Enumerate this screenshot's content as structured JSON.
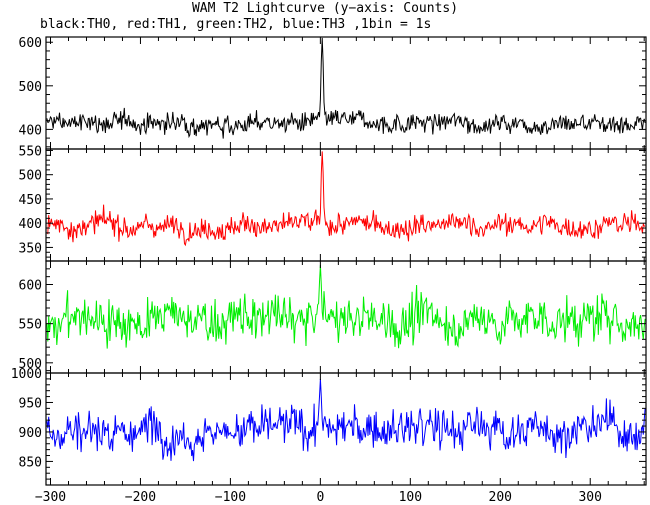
{
  "title": "WAM T2 Lightcurve (y−axis: Counts)",
  "subtitle": "black:TH0, red:TH1, green:TH2, blue:TH3 ,1bin = 1s",
  "chart_data": {
    "type": "line",
    "title": "WAM T2 Lightcurve (y−axis: Counts)",
    "subtitle": "black:TH0, red:TH1, green:TH2, blue:TH3 ,1bin = 1s",
    "xlabel": "",
    "xlim": [
      -305,
      362
    ],
    "x_ticks": [
      -300,
      -200,
      -100,
      0,
      100,
      200,
      300
    ],
    "x_tick_labels": [
      "−300",
      "−200",
      "−100",
      "0",
      "100",
      "200",
      "300"
    ],
    "bin_seconds": 1,
    "grid": false,
    "panels": [
      {
        "series": "TH0",
        "color": "#000000",
        "ylim": [
          355,
          612
        ],
        "y_ticks": [
          400,
          500,
          600
        ],
        "y_tick_labels": [
          "400",
          "500",
          "600"
        ],
        "baseline": 415,
        "noise": 20,
        "peak": {
          "x": 2,
          "value": 610
        }
      },
      {
        "series": "TH1",
        "color": "#ff0000",
        "ylim": [
          322,
          553
        ],
        "y_ticks": [
          350,
          400,
          450,
          500,
          550
        ],
        "y_tick_labels": [
          "350",
          "400",
          "450",
          "500",
          "550"
        ],
        "baseline": 395,
        "noise": 20,
        "peak": {
          "x": 2,
          "value": 548
        }
      },
      {
        "series": "TH2",
        "color": "#00ee00",
        "ylim": [
          487,
          630
        ],
        "y_ticks": [
          500,
          550,
          600
        ],
        "y_tick_labels": [
          "500",
          "550",
          "600"
        ],
        "baseline": 555,
        "noise": 25,
        "peak": {
          "x": 0,
          "value": 625
        }
      },
      {
        "series": "TH3",
        "color": "#0000ff",
        "ylim": [
          810,
          1000
        ],
        "y_ticks": [
          850,
          900,
          950,
          1000
        ],
        "y_tick_labels": [
          "850",
          "900",
          "950",
          "1000"
        ],
        "baseline": 905,
        "noise": 30,
        "peak": {
          "x": 0,
          "value": 990
        }
      }
    ]
  }
}
